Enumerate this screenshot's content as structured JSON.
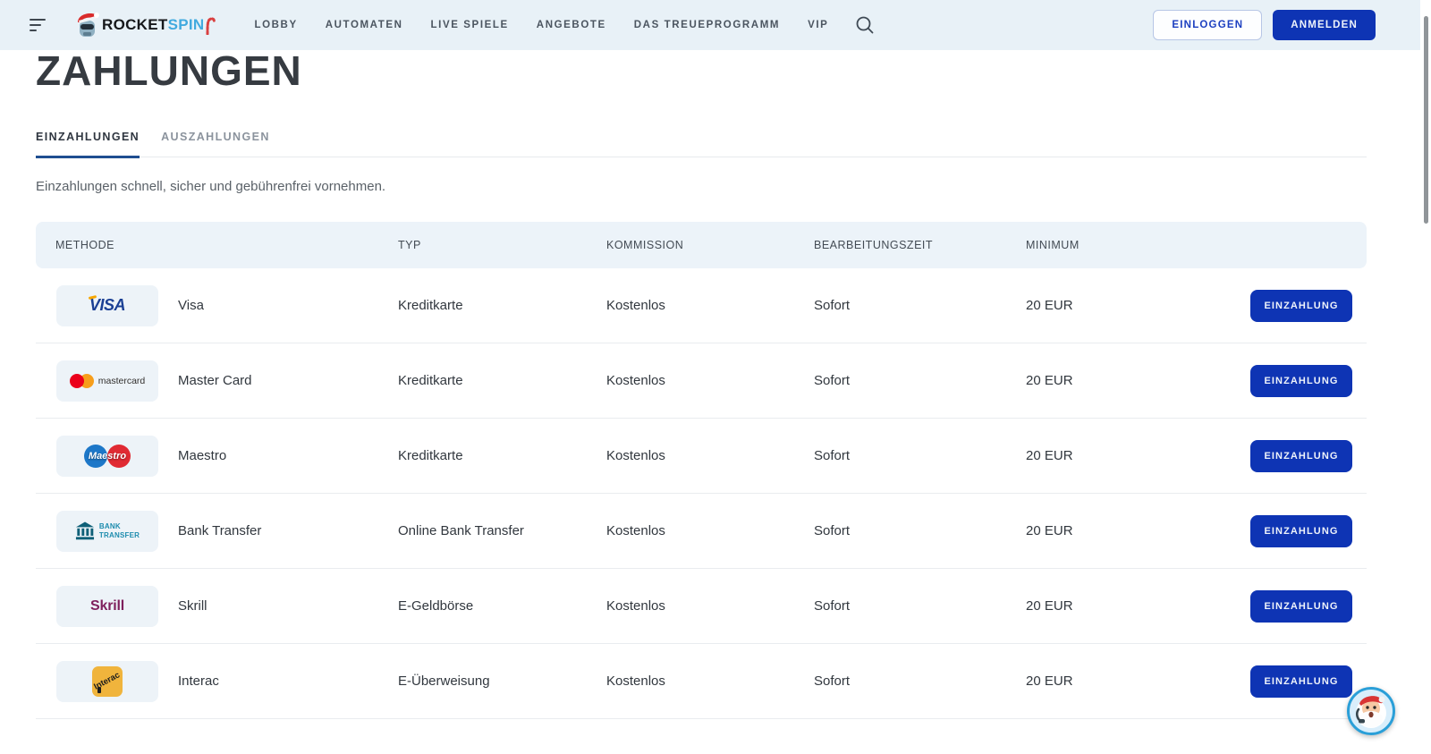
{
  "header": {
    "logo": {
      "part1": "ROCKET",
      "part2": "SPIN"
    },
    "nav": [
      {
        "label": "LOBBY"
      },
      {
        "label": "AUTOMATEN"
      },
      {
        "label": "LIVE SPIELE"
      },
      {
        "label": "ANGEBOTE"
      },
      {
        "label": "DAS TREUEPROGRAMM"
      },
      {
        "label": "VIP"
      }
    ],
    "auth": {
      "login_label": "EINLOGGEN",
      "signup_label": "ANMELDEN"
    }
  },
  "page": {
    "title": "ZAHLUNGEN",
    "tabs": [
      {
        "label": "EINZAHLUNGEN",
        "active": true
      },
      {
        "label": "AUSZAHLUNGEN",
        "active": false
      }
    ],
    "description": "Einzahlungen schnell, sicher und gebührenfrei vornehmen."
  },
  "table": {
    "columns": [
      "METHODE",
      "TYP",
      "KOMMISSION",
      "BEARBEITUNGSZEIT",
      "MINIMUM"
    ],
    "action_label": "EINZAHLUNG",
    "rows": [
      {
        "icon": "visa",
        "method": "Visa",
        "type": "Kreditkarte",
        "commission": "Kostenlos",
        "processing_time": "Sofort",
        "minimum": "20 EUR"
      },
      {
        "icon": "mastercard",
        "method": "Master Card",
        "type": "Kreditkarte",
        "commission": "Kostenlos",
        "processing_time": "Sofort",
        "minimum": "20 EUR"
      },
      {
        "icon": "maestro",
        "method": "Maestro",
        "type": "Kreditkarte",
        "commission": "Kostenlos",
        "processing_time": "Sofort",
        "minimum": "20 EUR"
      },
      {
        "icon": "bank",
        "method": "Bank Transfer",
        "type": "Online Bank Transfer",
        "commission": "Kostenlos",
        "processing_time": "Sofort",
        "minimum": "20 EUR"
      },
      {
        "icon": "skrill",
        "method": "Skrill",
        "type": "E-Geldbörse",
        "commission": "Kostenlos",
        "processing_time": "Sofort",
        "minimum": "20 EUR"
      },
      {
        "icon": "interac",
        "method": "Interac",
        "type": "E-Überweisung",
        "commission": "Kostenlos",
        "processing_time": "Sofort",
        "minimum": "20 EUR"
      }
    ]
  },
  "icons": {
    "visa": "VISA",
    "mastercard": "mastercard",
    "maestro": "Maestro",
    "bank_line1": "BANK",
    "bank_line2": "TRANSFER",
    "skrill": "Skrill",
    "interac": "Interac"
  },
  "colors": {
    "topbar_bg": "#e8f1f7",
    "accent_blue": "#0e34b4",
    "tab_underline": "#1f4e90",
    "logo_spin": "#41aadf",
    "table_header_bg": "#ecf3f9",
    "tile_bg": "#edf3f8"
  }
}
